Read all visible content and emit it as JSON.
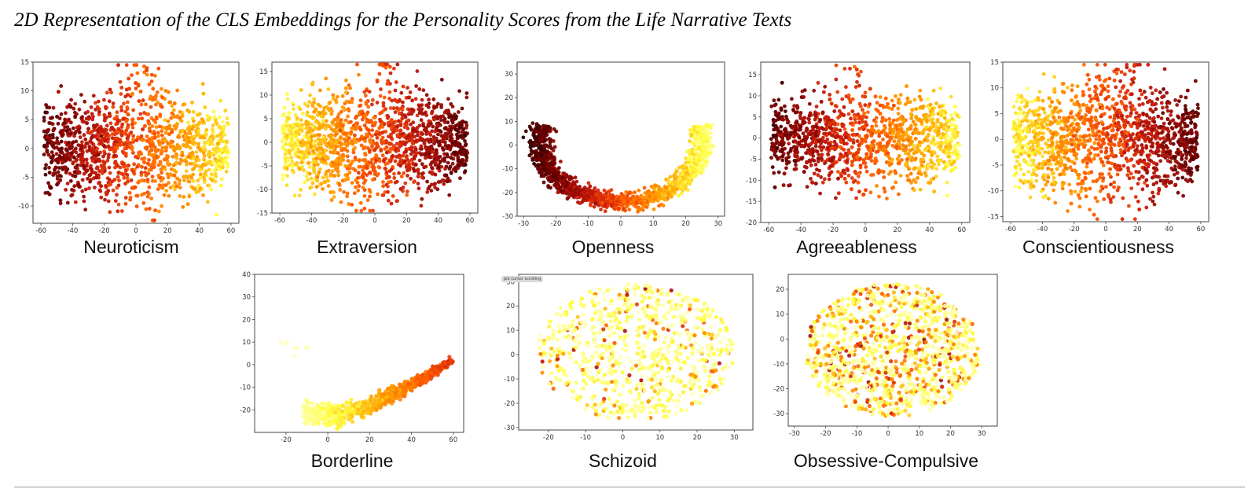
{
  "title": "2D Representation of the CLS Embeddings for the Personality Scores from the Life Narrative Texts",
  "colormap": [
    "#2a0000",
    "#7a0000",
    "#c81a0a",
    "#ff5a00",
    "#ffa500",
    "#ffff40",
    "#ffffd0"
  ],
  "overlay_text": "ple cursor scrolling",
  "chart_data": [
    {
      "type": "scatter",
      "label": "Neuroticism",
      "xlim": [
        -65,
        65
      ],
      "ylim": [
        -13,
        15
      ],
      "xticks": [
        -60,
        -40,
        -20,
        0,
        20,
        40,
        60
      ],
      "yticks": [
        -10,
        -5,
        0,
        5,
        10,
        15
      ],
      "shape": "blob",
      "points": 1500,
      "color_gradient": "dark red (left) to yellow (right)"
    },
    {
      "type": "scatter",
      "label": "Extraversion",
      "xlim": [
        -65,
        65
      ],
      "ylim": [
        -15,
        17
      ],
      "xticks": [
        -60,
        -40,
        -20,
        0,
        20,
        40,
        60
      ],
      "yticks": [
        -15,
        -10,
        -5,
        0,
        5,
        10,
        15
      ],
      "shape": "blob",
      "points": 1500,
      "color_gradient": "orange (left) to dark red (right)"
    },
    {
      "type": "scatter",
      "label": "Openness",
      "xlim": [
        -32,
        32
      ],
      "ylim": [
        -30,
        35
      ],
      "xticks": [
        -30,
        -20,
        -10,
        0,
        10,
        20,
        30
      ],
      "yticks": [
        -30,
        -20,
        -10,
        0,
        10,
        20,
        30
      ],
      "shape": "U-curve",
      "points": 1400,
      "color_gradient": "dark red (left) to yellow (right)"
    },
    {
      "type": "scatter",
      "label": "Agreeableness",
      "xlim": [
        -65,
        65
      ],
      "ylim": [
        -20,
        18
      ],
      "xticks": [
        -60,
        -40,
        -20,
        0,
        20,
        40,
        60
      ],
      "yticks": [
        -20,
        -15,
        -10,
        -5,
        0,
        5,
        10,
        15
      ],
      "shape": "blob",
      "points": 1500,
      "color_gradient": "dark red (left) to yellow (right)"
    },
    {
      "type": "scatter",
      "label": "Conscientiousness",
      "xlim": [
        -65,
        65
      ],
      "ylim": [
        -16,
        15
      ],
      "xticks": [
        -60,
        -40,
        -20,
        0,
        20,
        40,
        60
      ],
      "yticks": [
        -15,
        -10,
        -5,
        0,
        5,
        10,
        15
      ],
      "shape": "blob",
      "points": 1500,
      "color_gradient": "orange (left) to dark red (right)"
    },
    {
      "type": "scatter",
      "label": "Borderline",
      "xlim": [
        -35,
        65
      ],
      "ylim": [
        -30,
        40
      ],
      "xticks": [
        -20,
        0,
        20,
        40,
        60
      ],
      "yticks": [
        -20,
        -10,
        0,
        10,
        20,
        30,
        40
      ],
      "shape": "arc",
      "points": 700,
      "color_gradient": "pale yellow (left) to red (right)"
    },
    {
      "type": "scatter",
      "label": "Schizoid",
      "xlim": [
        -28,
        35
      ],
      "ylim": [
        -31,
        33
      ],
      "xticks": [
        -20,
        -10,
        0,
        10,
        20,
        30
      ],
      "yticks": [
        -30,
        -20,
        -10,
        0,
        10,
        20,
        30
      ],
      "shape": "cloud",
      "points": 800,
      "color_gradient": "mostly pale yellow with sparse red"
    },
    {
      "type": "scatter",
      "label": "Obsessive-Compulsive",
      "xlim": [
        -32,
        35
      ],
      "ylim": [
        -35,
        26
      ],
      "xticks": [
        -30,
        -20,
        -10,
        0,
        10,
        20,
        30
      ],
      "yticks": [
        -30,
        -20,
        -10,
        0,
        10,
        20
      ],
      "shape": "cloud",
      "points": 1100,
      "color_gradient": "yellow with scattered red"
    }
  ]
}
